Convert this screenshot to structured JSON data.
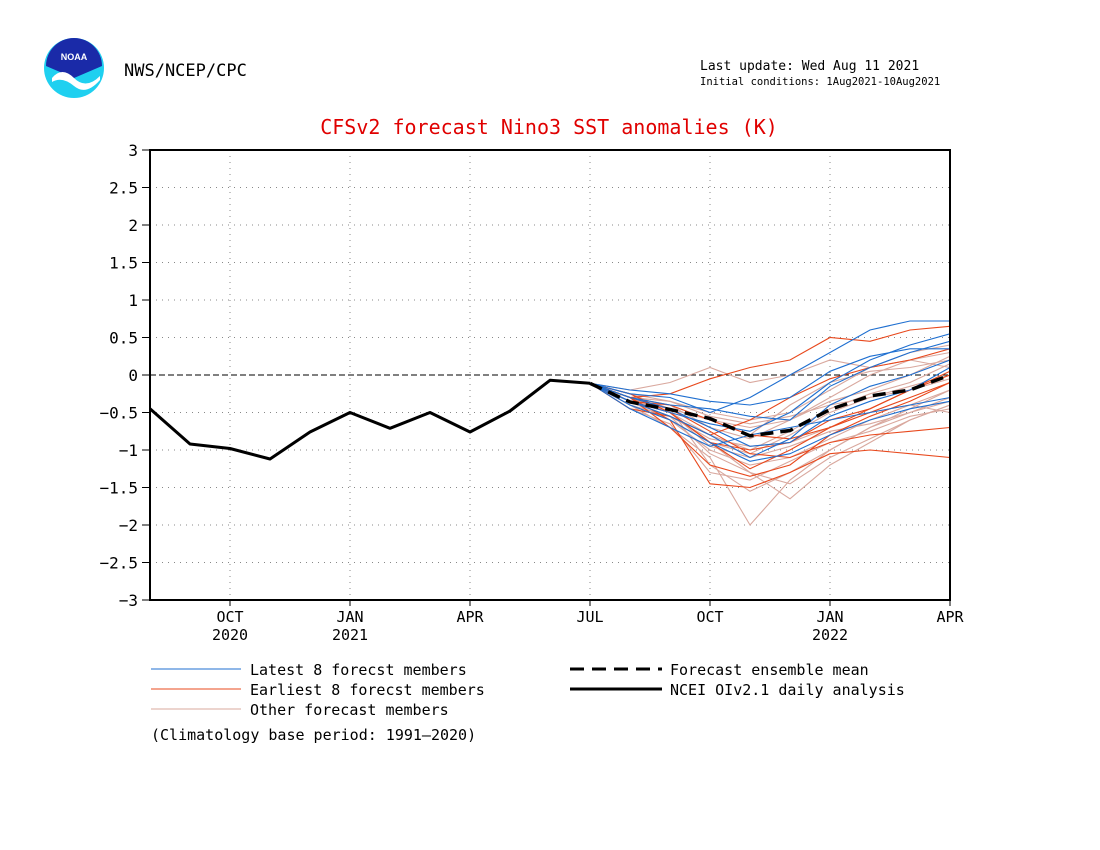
{
  "header": {
    "agency": "NWS/NCEP/CPC",
    "logo_text": "NOAA",
    "last_update": "Last update: Wed Aug 11 2021",
    "initial_conditions": "Initial conditions: 1Aug2021-10Aug2021"
  },
  "colors": {
    "title": "#e00000",
    "latest": "#1f6fd0",
    "earliest": "#e8481c",
    "other": "#d9a89e",
    "observed": "#000000"
  },
  "chart_data": {
    "type": "line",
    "title": "CFSv2 forecast Nino3 SST anomalies (K)",
    "x_unit": "month",
    "xlim": [
      "2020-08",
      "2022-04"
    ],
    "ylim": [
      -3,
      3
    ],
    "y_ticks": [
      3,
      2.5,
      2,
      1.5,
      1,
      0.5,
      0,
      -0.5,
      -1,
      -1.5,
      -2,
      -2.5,
      -3
    ],
    "y_tick_labels": [
      "3",
      "2.5",
      "2",
      "1.5",
      "1",
      "0.5",
      "0",
      "−0.5",
      "−1",
      "−1.5",
      "−2",
      "−2.5",
      "−3"
    ],
    "x_ticks": [
      {
        "x": "2020-10",
        "label": "OCT",
        "year": "2020"
      },
      {
        "x": "2021-01",
        "label": "JAN",
        "year": "2021"
      },
      {
        "x": "2021-04",
        "label": "APR",
        "year": ""
      },
      {
        "x": "2021-07",
        "label": "JUL",
        "year": ""
      },
      {
        "x": "2021-10",
        "label": "OCT",
        "year": ""
      },
      {
        "x": "2022-01",
        "label": "JAN",
        "year": "2022"
      },
      {
        "x": "2022-04",
        "label": "APR",
        "year": ""
      }
    ],
    "grid": true,
    "observed": {
      "name": "NCEI OIv2.1 daily analysis",
      "x": [
        "2020-08",
        "2020-09",
        "2020-10",
        "2020-11",
        "2020-12",
        "2021-01",
        "2021-02",
        "2021-03",
        "2021-04",
        "2021-05",
        "2021-06",
        "2021-07"
      ],
      "y": [
        -0.45,
        -0.92,
        -0.98,
        -1.12,
        -0.76,
        -0.5,
        -0.71,
        -0.5,
        -0.76,
        -0.48,
        -0.07,
        -0.11
      ]
    },
    "ensemble_mean": {
      "name": "Forecast ensemble mean",
      "x": [
        "2021-07",
        "2021-08",
        "2021-09",
        "2021-10",
        "2021-11",
        "2021-12",
        "2022-01",
        "2022-02",
        "2022-03",
        "2022-04"
      ],
      "y": [
        -0.11,
        -0.36,
        -0.46,
        -0.58,
        -0.81,
        -0.74,
        -0.46,
        -0.28,
        -0.2,
        0.0
      ]
    },
    "member_months": [
      "2021-07",
      "2021-08",
      "2021-09",
      "2021-10",
      "2021-11",
      "2021-12",
      "2022-01",
      "2022-02",
      "2022-03",
      "2022-04"
    ],
    "latest_members": {
      "name": "Latest 8 forecst members",
      "values": [
        [
          -0.11,
          -0.3,
          -0.45,
          -0.7,
          -0.95,
          -0.9,
          -0.55,
          -0.35,
          -0.2,
          0.1
        ],
        [
          -0.11,
          -0.35,
          -0.55,
          -0.8,
          -1.1,
          -0.85,
          -0.4,
          -0.15,
          0.0,
          0.2
        ],
        [
          -0.11,
          -0.25,
          -0.3,
          -0.5,
          -0.3,
          0.0,
          0.3,
          0.6,
          0.72,
          0.72
        ],
        [
          -0.11,
          -0.4,
          -0.6,
          -0.9,
          -1.15,
          -1.05,
          -0.8,
          -0.6,
          -0.45,
          -0.35
        ],
        [
          -0.11,
          -0.3,
          -0.4,
          -0.45,
          -0.55,
          -0.6,
          -0.15,
          0.1,
          0.3,
          0.45
        ],
        [
          -0.11,
          -0.35,
          -0.5,
          -0.65,
          -0.75,
          -0.5,
          -0.1,
          0.2,
          0.4,
          0.55
        ],
        [
          -0.11,
          -0.2,
          -0.25,
          -0.35,
          -0.4,
          -0.3,
          0.05,
          0.25,
          0.35,
          0.35
        ],
        [
          -0.11,
          -0.45,
          -0.7,
          -0.95,
          -0.8,
          -0.7,
          -0.6,
          -0.5,
          -0.4,
          -0.3
        ]
      ]
    },
    "earliest_members": {
      "name": "Earliest 8 forecst members",
      "values": [
        [
          -0.11,
          -0.3,
          -0.6,
          -1.45,
          -1.5,
          -1.3,
          -1.05,
          -1.0,
          -1.05,
          -1.1
        ],
        [
          -0.11,
          -0.3,
          -0.25,
          -0.05,
          0.1,
          0.2,
          0.5,
          0.45,
          0.6,
          0.65
        ],
        [
          -0.11,
          -0.35,
          -0.5,
          -0.9,
          -1.0,
          -0.9,
          -0.6,
          -0.45,
          -0.2,
          0.05
        ],
        [
          -0.11,
          -0.3,
          -0.7,
          -1.2,
          -1.35,
          -1.2,
          -0.8,
          -0.55,
          -0.35,
          -0.1
        ],
        [
          -0.11,
          -0.35,
          -0.4,
          -0.6,
          -0.8,
          -0.85,
          -0.7,
          -0.5,
          -0.3,
          -0.1
        ],
        [
          -0.11,
          -0.45,
          -0.55,
          -0.8,
          -0.6,
          -0.3,
          -0.05,
          0.1,
          0.2,
          0.35
        ],
        [
          -0.11,
          -0.3,
          -0.45,
          -0.75,
          -1.05,
          -1.1,
          -0.9,
          -0.8,
          -0.75,
          -0.7
        ],
        [
          -0.11,
          -0.25,
          -0.5,
          -0.9,
          -1.25,
          -1.0,
          -0.7,
          -0.45,
          -0.2,
          0.0
        ]
      ]
    },
    "other_members": {
      "name": "Other forecast members",
      "values": [
        [
          -0.11,
          -0.4,
          -0.7,
          -1.1,
          -2.0,
          -1.4,
          -1.0,
          -0.7,
          -0.5,
          -0.3
        ],
        [
          -0.11,
          -0.3,
          -0.5,
          -0.9,
          -1.3,
          -1.65,
          -1.2,
          -0.9,
          -0.6,
          -0.4
        ],
        [
          -0.11,
          -0.35,
          -0.45,
          -1.2,
          -1.55,
          -1.3,
          -1.0,
          -0.7,
          -0.45,
          -0.2
        ],
        [
          -0.11,
          -0.2,
          -0.1,
          0.1,
          -0.1,
          0.0,
          0.2,
          0.1,
          0.3,
          0.4
        ],
        [
          -0.11,
          -0.3,
          -0.4,
          -0.6,
          -0.7,
          -0.6,
          -0.3,
          0.0,
          0.2,
          0.3
        ],
        [
          -0.11,
          -0.35,
          -0.55,
          -0.85,
          -0.95,
          -0.9,
          -0.7,
          -0.5,
          -0.4,
          -0.2
        ],
        [
          -0.11,
          -0.25,
          -0.35,
          -0.5,
          -0.6,
          -0.5,
          -0.2,
          0.1,
          0.2,
          0.1
        ],
        [
          -0.11,
          -0.4,
          -0.6,
          -1.0,
          -1.2,
          -1.1,
          -0.85,
          -0.6,
          -0.4,
          -0.5
        ],
        [
          -0.11,
          -0.3,
          -0.5,
          -0.8,
          -1.0,
          -0.75,
          -0.45,
          -0.25,
          -0.1,
          0.15
        ],
        [
          -0.11,
          -0.45,
          -0.65,
          -1.3,
          -1.4,
          -1.15,
          -0.9,
          -0.75,
          -0.55,
          -0.45
        ],
        [
          -0.11,
          -0.3,
          -0.4,
          -0.7,
          -0.85,
          -0.6,
          -0.35,
          -0.2,
          0.0,
          0.25
        ],
        [
          -0.11,
          -0.35,
          -0.5,
          -0.95,
          -1.1,
          -0.95,
          -0.75,
          -0.65,
          -0.5,
          -0.35
        ],
        [
          -0.11,
          -0.25,
          -0.45,
          -0.6,
          -0.8,
          -0.4,
          -0.1,
          0.05,
          0.1,
          0.2
        ],
        [
          -0.11,
          -0.4,
          -0.55,
          -1.05,
          -1.3,
          -1.45,
          -1.1,
          -0.85,
          -0.6,
          -0.4
        ],
        [
          -0.11,
          -0.3,
          -0.35,
          -0.55,
          -0.65,
          -0.55,
          -0.4,
          -0.3,
          -0.2,
          -0.05
        ],
        [
          -0.11,
          -0.35,
          -0.6,
          -0.9,
          -1.05,
          -0.8,
          -0.5,
          -0.3,
          -0.15,
          0.0
        ]
      ]
    },
    "legend": [
      {
        "key": "latest",
        "label": "Latest 8 forecst members",
        "style": "thin"
      },
      {
        "key": "earliest",
        "label": "Earliest 8 forecst members",
        "style": "thin"
      },
      {
        "key": "other",
        "label": "Other forecast members",
        "style": "thin"
      },
      {
        "key": "mean",
        "label": "Forecast ensemble mean",
        "style": "dashed"
      },
      {
        "key": "observed",
        "label": "NCEI OIv2.1 daily analysis",
        "style": "solid"
      }
    ],
    "note": "(Climatology base period: 1991—2020)"
  }
}
